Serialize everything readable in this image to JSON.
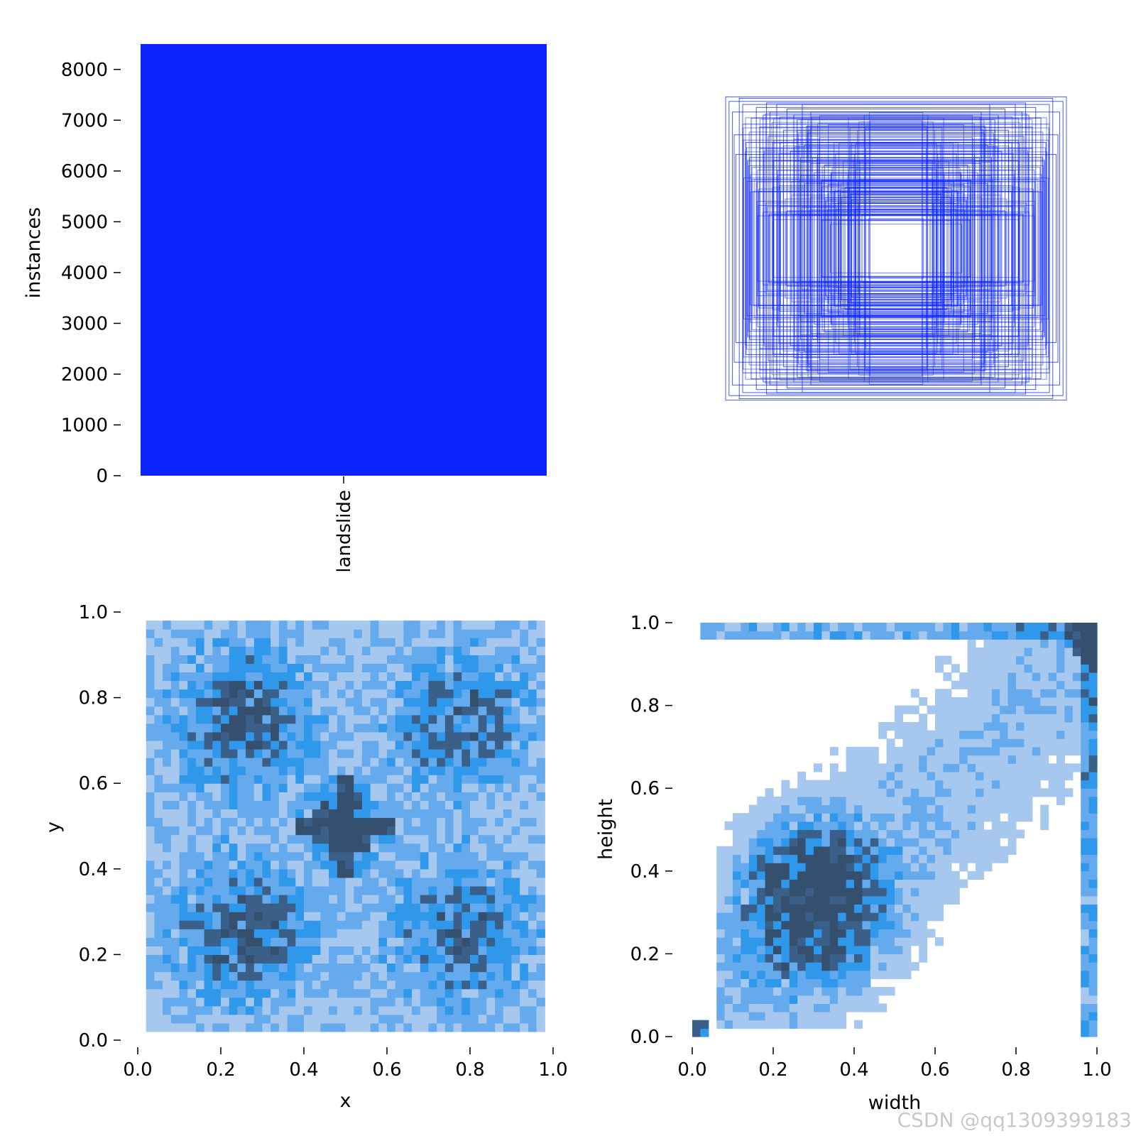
{
  "watermark": "CSDN @qq1309399183",
  "colors": {
    "bar": "#0b24fb",
    "box_stroke": "#0b24fb",
    "hist_light": "#a6c8ee",
    "hist_mid": "#66aaee",
    "hist_strong": "#2f98ea",
    "hist_dark": "#3a5f88",
    "hist_darkest": "#35506e"
  },
  "chart_data": [
    {
      "id": "class-counts",
      "type": "bar",
      "categories": [
        "landslide"
      ],
      "values": [
        8500
      ],
      "ylabel": "instances",
      "ylim": [
        0,
        8500
      ],
      "yticks": [
        "0",
        "1000",
        "2000",
        "3000",
        "4000",
        "5000",
        "6000",
        "7000",
        "8000"
      ],
      "xticks": [
        "landslide"
      ]
    },
    {
      "id": "box-overlay",
      "type": "scatter",
      "description_kind": "overlay of bounding-box outlines centered at (0.5, 0.5)",
      "boxes_wh": [
        [
          1.0,
          1.0
        ],
        [
          0.98,
          0.97
        ],
        [
          0.96,
          0.9
        ],
        [
          0.92,
          0.99
        ],
        [
          0.9,
          0.95
        ],
        [
          0.85,
          0.86
        ],
        [
          0.82,
          0.93
        ],
        [
          0.8,
          0.8
        ],
        [
          0.78,
          0.88
        ],
        [
          0.75,
          0.74
        ],
        [
          0.74,
          0.9
        ],
        [
          0.7,
          0.82
        ],
        [
          0.68,
          0.7
        ],
        [
          0.66,
          0.78
        ],
        [
          0.62,
          0.64
        ],
        [
          0.6,
          0.72
        ],
        [
          0.58,
          0.85
        ],
        [
          0.56,
          0.6
        ],
        [
          0.54,
          0.68
        ],
        [
          0.5,
          0.56
        ],
        [
          0.52,
          0.76
        ],
        [
          0.48,
          0.5
        ],
        [
          0.46,
          0.62
        ],
        [
          0.44,
          0.45
        ],
        [
          0.42,
          0.55
        ],
        [
          0.4,
          0.42
        ],
        [
          0.38,
          0.5
        ],
        [
          0.36,
          0.38
        ],
        [
          0.34,
          0.44
        ],
        [
          0.32,
          0.34
        ],
        [
          0.3,
          0.4
        ],
        [
          0.28,
          0.3
        ],
        [
          0.26,
          0.32
        ],
        [
          0.24,
          0.26
        ],
        [
          0.22,
          0.3
        ],
        [
          0.2,
          0.22
        ],
        [
          0.88,
          0.7
        ],
        [
          0.7,
          0.95
        ],
        [
          0.95,
          0.75
        ],
        [
          0.64,
          0.92
        ],
        [
          0.86,
          0.6
        ],
        [
          0.6,
          0.88
        ],
        [
          0.8,
          0.66
        ],
        [
          0.72,
          0.58
        ],
        [
          0.58,
          0.78
        ],
        [
          0.9,
          0.82
        ],
        [
          0.76,
          0.96
        ],
        [
          0.55,
          0.95
        ],
        [
          0.94,
          0.62
        ],
        [
          0.5,
          0.9
        ]
      ]
    },
    {
      "id": "xy-hist",
      "type": "heatmap",
      "xlabel": "x",
      "ylabel": "y",
      "xlim": [
        0,
        1
      ],
      "ylim": [
        0,
        1
      ],
      "xticks": [
        "0.0",
        "0.2",
        "0.4",
        "0.6",
        "0.8",
        "1.0"
      ],
      "yticks": [
        "0.0",
        "0.2",
        "0.4",
        "0.6",
        "0.8",
        "1.0"
      ],
      "bins": 50,
      "clusters": [
        {
          "cx": 0.25,
          "cy": 0.75,
          "weight": 0.95
        },
        {
          "cx": 0.78,
          "cy": 0.75,
          "weight": 0.8
        },
        {
          "cx": 0.25,
          "cy": 0.25,
          "weight": 0.85
        },
        {
          "cx": 0.78,
          "cy": 0.25,
          "weight": 0.8
        },
        {
          "cx": 0.5,
          "cy": 0.5,
          "weight": 1.0
        }
      ]
    },
    {
      "id": "wh-hist",
      "type": "heatmap",
      "xlabel": "width",
      "ylabel": "height",
      "xlim": [
        0,
        1
      ],
      "ylim": [
        0,
        1
      ],
      "xticks": [
        "0.0",
        "0.2",
        "0.4",
        "0.6",
        "0.8",
        "1.0"
      ],
      "yticks": [
        "0.0",
        "0.2",
        "0.4",
        "0.6",
        "0.8",
        "1.0"
      ],
      "bins": 50,
      "clusters": [
        {
          "cx": 0.3,
          "cy": 0.33,
          "weight": 1.0
        },
        {
          "cx": 0.98,
          "cy": 0.97,
          "weight": 1.0
        }
      ]
    }
  ]
}
